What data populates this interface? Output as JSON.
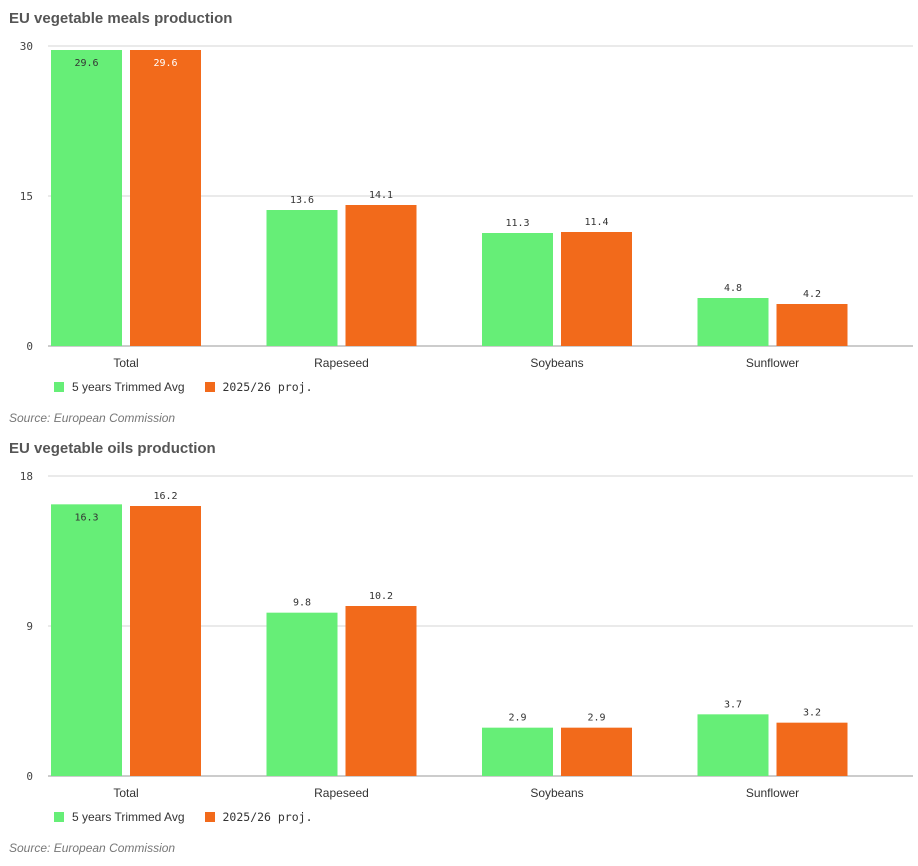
{
  "source": "Source: European Commission",
  "colors": {
    "series1": "#66ee77",
    "series2": "#f26a1b"
  },
  "chart_data": [
    {
      "type": "bar",
      "title": "EU vegetable meals production",
      "categories": [
        "Total",
        "Rapeseed",
        "Soybeans",
        "Sunflower"
      ],
      "series": [
        {
          "name": "5 years Trimmed Avg",
          "values": [
            29.6,
            13.6,
            11.3,
            4.8
          ],
          "labels": [
            "29.6",
            "13.6",
            "11.3",
            "4.8"
          ]
        },
        {
          "name": "2025/26 proj.",
          "values": [
            29.6,
            14.1,
            11.4,
            4.2
          ],
          "labels": [
            "29.6",
            "14.1",
            "11.4",
            "4.2"
          ]
        }
      ],
      "yticks": [
        "0",
        "15",
        "30"
      ],
      "ylim": [
        0,
        30
      ],
      "grid": true,
      "legend": "bottom-left"
    },
    {
      "type": "bar",
      "title": "EU vegetable oils production",
      "categories": [
        "Total",
        "Rapeseed",
        "Soybeans",
        "Sunflower"
      ],
      "series": [
        {
          "name": "5 years Trimmed Avg",
          "values": [
            16.3,
            9.8,
            2.9,
            3.7
          ],
          "labels": [
            "16.3",
            "9.8",
            "2.9",
            "3.7"
          ]
        },
        {
          "name": "2025/26 proj.",
          "values": [
            16.2,
            10.2,
            2.9,
            3.2
          ],
          "labels": [
            "16.2",
            "10.2",
            "2.9",
            "3.2"
          ]
        }
      ],
      "yticks": [
        "0",
        "9",
        "18"
      ],
      "ylim": [
        0,
        18
      ],
      "grid": true,
      "legend": "bottom-left"
    }
  ]
}
